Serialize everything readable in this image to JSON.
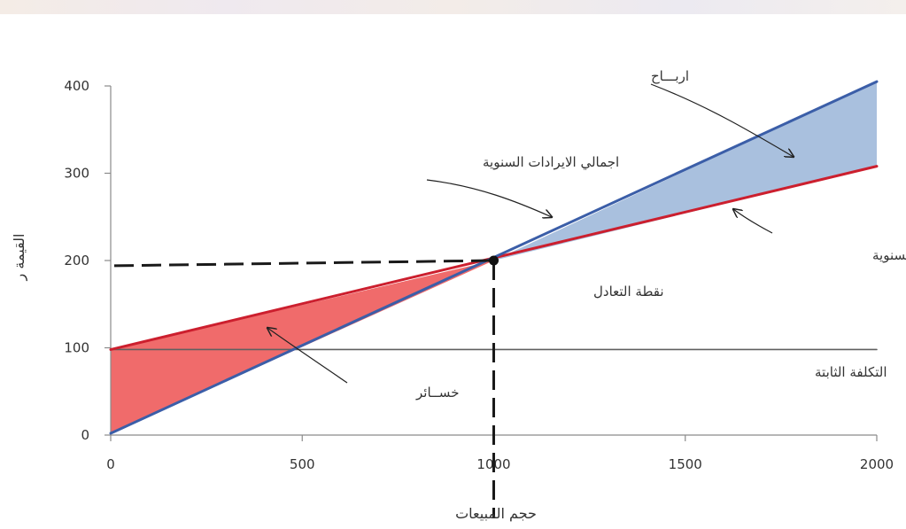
{
  "chart_data": {
    "type": "line",
    "xlabel": "حجم المبيعات",
    "ylabel": "القيمة ر",
    "xlim": [
      0,
      2000
    ],
    "ylim": [
      0,
      400
    ],
    "xticks": [
      0,
      500,
      1000,
      1500,
      2000
    ],
    "yticks": [
      0,
      100,
      200,
      300,
      400
    ],
    "grid": false,
    "series": [
      {
        "name": "اجمالي الايرادات السنوية",
        "x": [
          0,
          2000
        ],
        "y": [
          2,
          405
        ],
        "color": "#3b5ea8"
      },
      {
        "name": "التكلفة الإجمالية السنوية",
        "x": [
          0,
          2000
        ],
        "y": [
          98,
          308
        ],
        "color": "#cc1f2e"
      },
      {
        "name": "التكلفة الثابتة",
        "x": [
          0,
          2000
        ],
        "y": [
          98,
          98
        ],
        "color": "#606060"
      }
    ],
    "areas": [
      {
        "label": "خســائر",
        "x": [
          0,
          1000
        ],
        "color": "#f06b6b"
      },
      {
        "label": "اربـــاح",
        "x": [
          1000,
          2000
        ],
        "color": "#a9c0de"
      }
    ],
    "break_even": {
      "label": "نقطة التعادل",
      "x": 1000,
      "y": 200
    },
    "annotations": {
      "revenue": "اجمالي الايرادات السنوية",
      "profit": "اربـــاح",
      "total_cost": "التكلفة الإجمالية السنوية",
      "break_even": "نقطة التعادل",
      "fixed_cost": "التكلفة الثابتة",
      "losses": "خســائر"
    }
  }
}
